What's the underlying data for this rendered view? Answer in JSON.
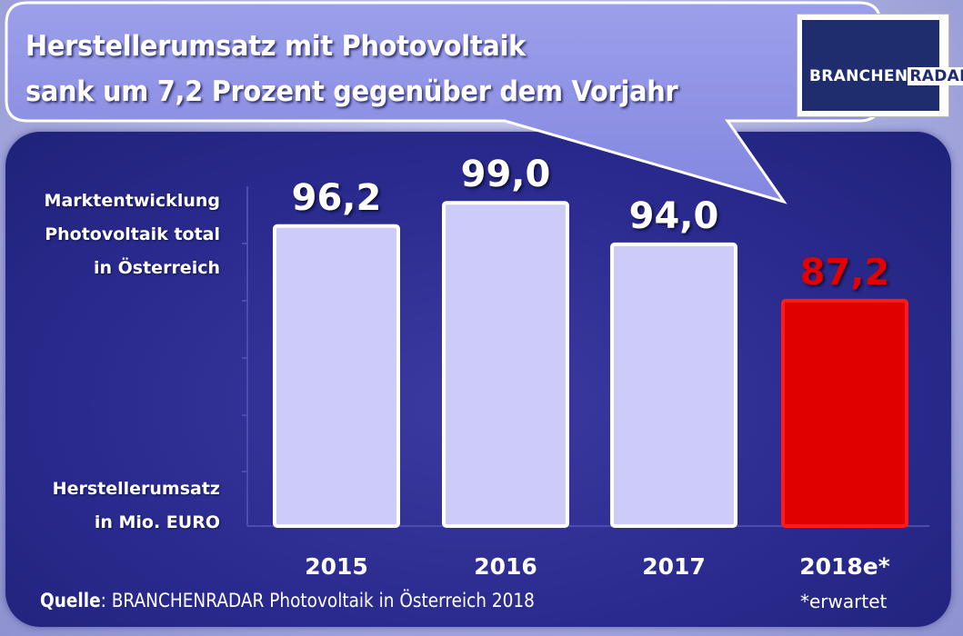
{
  "title": {
    "line1": "Herstellerumsatz mit  Photovoltaik",
    "line2": "sank um 7,2 Prozent gegenüber dem Vorjahr"
  },
  "logo": {
    "part1": "BRANCHEN",
    "part2": "RADAR",
    "icon": "branchenradar-logo"
  },
  "colors": {
    "bar": "#cdccf9",
    "highlight": "#e00000",
    "value_highlight": "#e30000",
    "panel": "#2a2a8e"
  },
  "chart_data": {
    "type": "bar",
    "categories": [
      "2015",
      "2016",
      "2017",
      "2018e*"
    ],
    "values": [
      96.2,
      99.0,
      94.0,
      87.2
    ],
    "value_labels": [
      "96,2",
      "99,0",
      "94,0",
      "87,2"
    ],
    "highlight_index": 3,
    "ylabel_top": [
      "Marktentwicklung",
      "Photovoltaik total",
      "in Österreich"
    ],
    "ylabel_bottom": [
      "Herstellerumsatz",
      "in Mio. EURO"
    ],
    "grid": false,
    "legend": "none"
  },
  "source": {
    "label": "Quelle",
    "text": ": BRANCHENRADAR Photovoltaik in Österreich 2018"
  },
  "footnote": "*erwartet"
}
